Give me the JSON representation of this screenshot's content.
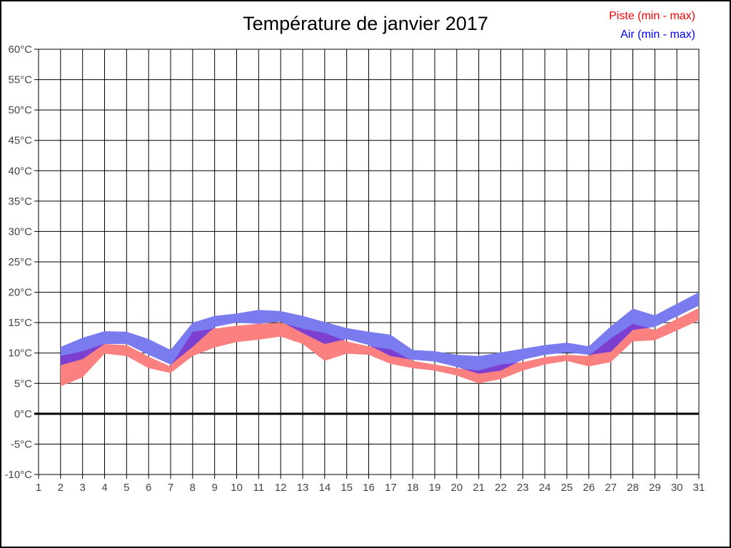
{
  "header": {
    "title": "Température de janvier 2017"
  },
  "legend": {
    "piste_label": "Piste (min - max)",
    "piste_color": "#ff0000",
    "air_label": "Air (min - max)",
    "air_color": "#0000ff",
    "position": "top-right"
  },
  "chart_data": {
    "type": "area",
    "band_style": "min-max-range-bands",
    "title": "Température de janvier 2017",
    "xlabel": "",
    "ylabel": "",
    "grid": true,
    "xlim": [
      1,
      31
    ],
    "ylim": [
      -10,
      60
    ],
    "zero_line_width": 3,
    "x_tick_values": [
      1,
      2,
      3,
      4,
      5,
      6,
      7,
      8,
      9,
      10,
      11,
      12,
      13,
      14,
      15,
      16,
      17,
      18,
      19,
      20,
      21,
      22,
      23,
      24,
      25,
      26,
      27,
      28,
      29,
      30,
      31
    ],
    "x_tick_labels": [
      "1",
      "2",
      "3",
      "4",
      "5",
      "6",
      "7",
      "8",
      "9",
      "10",
      "11",
      "12",
      "13",
      "14",
      "15",
      "16",
      "17",
      "18",
      "19",
      "20",
      "21",
      "22",
      "23",
      "24",
      "25",
      "26",
      "27",
      "28",
      "29",
      "30",
      "31"
    ],
    "y_tick_values": [
      60,
      55,
      50,
      45,
      40,
      35,
      30,
      25,
      20,
      15,
      10,
      5,
      0,
      -5,
      -10
    ],
    "y_tick_labels": [
      "60°C",
      "55°C",
      "50°C",
      "45°C",
      "40°C",
      "35°C",
      "30°C",
      "25°C",
      "20°C",
      "15°C",
      "10°C",
      "5°C",
      "0°C",
      "-5°C",
      "-10°C"
    ],
    "x_days": [
      2,
      3,
      4,
      5,
      6,
      7,
      8,
      9,
      10,
      11,
      12,
      13,
      14,
      15,
      16,
      17,
      18,
      19,
      20,
      21,
      22,
      23,
      24,
      25,
      26,
      27,
      28,
      29,
      30,
      31
    ],
    "series": [
      {
        "name": "Piste (min - max)",
        "fill": "#FB8080",
        "min": [
          4.5,
          6.0,
          9.9,
          9.5,
          7.5,
          6.7,
          9.5,
          10.9,
          11.8,
          12.2,
          12.7,
          11.5,
          8.7,
          9.9,
          9.7,
          8.2,
          7.5,
          7.1,
          6.3,
          5.0,
          5.7,
          7.1,
          8.1,
          8.7,
          7.8,
          8.5,
          11.9,
          12.1,
          13.7,
          15.4
        ],
        "max": [
          9.5,
          10.3,
          11.5,
          11.3,
          9.4,
          7.8,
          13.5,
          14.0,
          14.5,
          14.8,
          15.0,
          14.0,
          13.3,
          11.9,
          11.1,
          10.6,
          8.7,
          8.1,
          7.5,
          7.1,
          8.1,
          8.5,
          9.3,
          9.7,
          9.5,
          12.4,
          14.8,
          13.8,
          15.6,
          17.4
        ]
      },
      {
        "name": "Air (min - max)",
        "fill": "#7B7BF0",
        "min": [
          8.0,
          9.0,
          11.5,
          11.5,
          9.7,
          8.1,
          11.0,
          14.3,
          15.0,
          14.8,
          15.2,
          13.3,
          11.5,
          12.3,
          11.3,
          9.5,
          8.9,
          8.6,
          7.7,
          6.6,
          7.1,
          8.9,
          9.7,
          10.1,
          9.7,
          10.2,
          13.8,
          14.3,
          16.0,
          17.8
        ],
        "max": [
          11.0,
          12.5,
          13.6,
          13.5,
          12.3,
          10.5,
          15.0,
          16.1,
          16.5,
          17.1,
          16.9,
          16.1,
          15.1,
          14.1,
          13.5,
          13.0,
          10.5,
          10.3,
          9.7,
          9.5,
          10.1,
          10.7,
          11.3,
          11.7,
          11.1,
          14.4,
          17.3,
          16.2,
          18.1,
          20.0
        ]
      }
    ],
    "overlap_fill": "#7C3FD0",
    "grid_color": "#000000",
    "tick_label_color": "#444444"
  }
}
